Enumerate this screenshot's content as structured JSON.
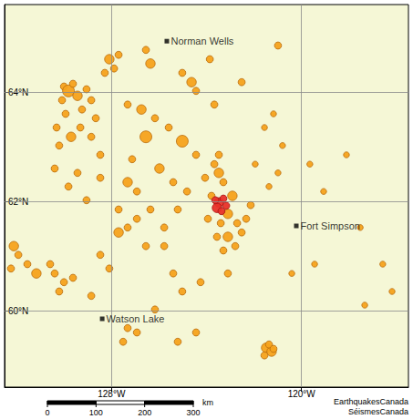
{
  "chart_data": {
    "type": "scatter",
    "xlim": [
      -132.5,
      -115.5
    ],
    "ylim": [
      58.6,
      65.6
    ],
    "xticks": [
      {
        "value": -128,
        "label": "128°W"
      },
      {
        "value": -120,
        "label": "120°W"
      }
    ],
    "yticks": [
      {
        "value": 60,
        "label": "60°N"
      },
      {
        "value": 62,
        "label": "62°N"
      },
      {
        "value": 64,
        "label": "64°N"
      }
    ],
    "grid": true,
    "series": [
      {
        "color": "#f5a21c",
        "marker": "circle",
        "x": [
          -130.0,
          -129.81,
          -129.62,
          -130.08,
          -129.43,
          -129.24,
          -129.93,
          -129.05,
          -128.85,
          -130.31,
          -129.7,
          -129.31,
          -130.2,
          -128.85,
          -128.47,
          -128.09,
          -127.89,
          -128.28,
          -127.7,
          -128.66,
          -130.39,
          -129.43,
          -129.81,
          -128.47,
          -129.05,
          -127.32,
          -126.74,
          -126.17,
          -126.55,
          -125.59,
          -125.02,
          -124.44,
          -127.13,
          -125.98,
          -125.4,
          -124.82,
          -124.06,
          -127.32,
          -126.93,
          -127.7,
          -126.36,
          -125.21,
          -125.78,
          -124.63,
          -124.44,
          -123.67,
          -123.48,
          -123.67,
          -123.48,
          -123.29,
          -123.79,
          -122.91,
          -123.1,
          -123.4,
          -122.71,
          -122.52,
          -123.1,
          -123.29,
          -122.79,
          -123.56,
          -122.33,
          -122.14,
          -123.94,
          -121.18,
          -121.56,
          -120.8,
          -120.99,
          -121.37,
          -121.95,
          -119.65,
          -119.07,
          -118.11,
          -117.53,
          -120.41,
          -119.45,
          -116.58,
          -116.19,
          -117.34,
          -132.11,
          -131.92,
          -132.23,
          -131.54,
          -131.16,
          -130.58,
          -130.39,
          -130.0,
          -130.2,
          -129.62,
          -128.47,
          -128.09,
          -127.7,
          -127.32,
          -126.93,
          -126.55,
          -125.78,
          -125.4,
          -125.02,
          -124.25,
          -123.1,
          -127.32,
          -126.93,
          -127.51,
          -128.85,
          -121.49,
          -121.26,
          -121.37,
          -121.56,
          -121.18,
          -125.21,
          -124.44,
          -126.17,
          -126.55,
          -123.86,
          -125.02,
          -122.52,
          -120.99,
          -126.36
        ],
        "values": [
          64.1,
          64.02,
          64.15,
          63.85,
          63.93,
          63.68,
          63.6,
          64.05,
          63.85,
          63.35,
          63.18,
          63.35,
          63.02,
          63.18,
          62.85,
          64.6,
          64.43,
          64.35,
          64.68,
          63.52,
          62.6,
          62.52,
          62.27,
          62.43,
          62.02,
          63.77,
          63.68,
          63.52,
          63.18,
          63.35,
          63.1,
          62.85,
          62.77,
          62.6,
          62.35,
          62.18,
          62.43,
          62.35,
          62.18,
          61.85,
          61.85,
          61.85,
          61.52,
          64.18,
          64.02,
          63.77,
          62.85,
          62.68,
          62.52,
          62.35,
          62.1,
          62.1,
          61.77,
          61.6,
          61.6,
          61.43,
          61.35,
          61.1,
          61.18,
          61.35,
          61.68,
          61.93,
          61.68,
          63.6,
          63.35,
          63.02,
          62.52,
          62.27,
          62.68,
          62.68,
          62.18,
          62.85,
          61.52,
          60.68,
          60.85,
          60.85,
          60.35,
          60.1,
          61.18,
          61.02,
          60.77,
          60.85,
          60.68,
          60.85,
          60.68,
          60.52,
          60.35,
          60.6,
          61.02,
          60.77,
          61.43,
          61.52,
          61.68,
          61.18,
          61.18,
          60.68,
          60.35,
          60.52,
          60.68,
          59.68,
          59.6,
          59.43,
          60.27,
          59.32,
          59.25,
          59.38,
          59.18,
          59.3,
          59.43,
          59.6,
          60.02,
          64.77,
          64.6,
          64.35,
          64.18,
          64.85,
          64.52
        ],
        "sizes": [
          3,
          5,
          3,
          3,
          4,
          3,
          3,
          3,
          3,
          3,
          4,
          3,
          3,
          3,
          3,
          4,
          3,
          3,
          3,
          3,
          3,
          3,
          3,
          3,
          3,
          3,
          4,
          3,
          5,
          3,
          5,
          3,
          3,
          4,
          3,
          3,
          3,
          4,
          3,
          3,
          3,
          3,
          3,
          4,
          3,
          3,
          3,
          3,
          4,
          3,
          3,
          4,
          4,
          3,
          3,
          3,
          4,
          3,
          3,
          3,
          3,
          3,
          3,
          2.5,
          2.5,
          2.5,
          2.5,
          2.5,
          2.5,
          2.5,
          2.5,
          2.5,
          2.5,
          2.5,
          2.5,
          2.5,
          2.5,
          2.5,
          4,
          3,
          3,
          3,
          4,
          3,
          3,
          3,
          3,
          3,
          3,
          3,
          4,
          3,
          3,
          3,
          3,
          3,
          3,
          3,
          3,
          3,
          3,
          3,
          3,
          4,
          4,
          3,
          3,
          3,
          3,
          3,
          3,
          3,
          3,
          3,
          3,
          3,
          4
        ]
      },
      {
        "color": "#e8322a",
        "marker": "circle",
        "x": [
          -123.48,
          -123.29,
          -123.56,
          -123.17,
          -123.37,
          -123.63
        ],
        "values": [
          61.98,
          62.05,
          61.88,
          61.92,
          61.82,
          62.02
        ],
        "sizes": [
          4,
          3,
          4,
          3,
          3,
          3
        ]
      }
    ],
    "places": [
      {
        "label": "Norman Wells",
        "x": -125.67,
        "y": 64.93,
        "marker": "square",
        "color": "#000000"
      },
      {
        "label": "Fort Simpson",
        "x": -120.22,
        "y": 61.55,
        "marker": "square",
        "color": "#000000"
      },
      {
        "label": "Watson Lake",
        "x": -128.39,
        "y": 59.85,
        "marker": "square",
        "color": "#000000"
      }
    ],
    "scale_bar": {
      "ticks": [
        0,
        100,
        200,
        300
      ],
      "unit": "km"
    },
    "credits": [
      "EarthquakesCanada",
      "SéismesCanada"
    ]
  }
}
